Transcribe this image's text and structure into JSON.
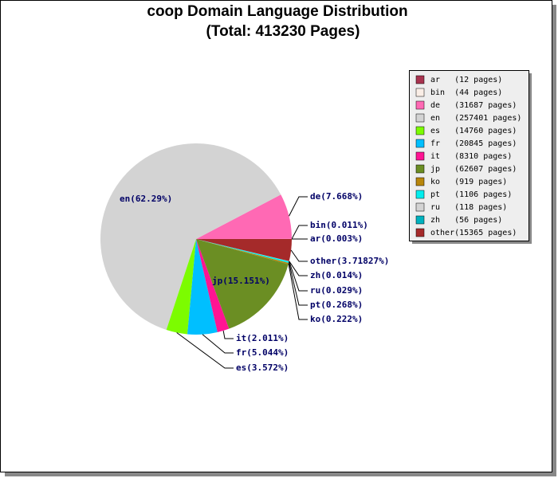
{
  "chart_data": {
    "type": "pie",
    "title": "coop Domain Language Distribution",
    "subtitle": "(Total: 413230 Pages)",
    "categories": [
      "ar",
      "bin",
      "de",
      "en",
      "es",
      "fr",
      "it",
      "jp",
      "ko",
      "pt",
      "ru",
      "zh",
      "other"
    ],
    "values": [
      12,
      44,
      31687,
      257401,
      14760,
      20845,
      8310,
      62607,
      919,
      1106,
      118,
      56,
      15365
    ],
    "colors": [
      "#a8334f",
      "#faeee6",
      "#ff69b4",
      "#d3d3d3",
      "#7cfc00",
      "#00bfff",
      "#ff1493",
      "#6b8e23",
      "#b8860b",
      "#00eeee",
      "#d3d3d3",
      "#00b2bf",
      "#a52a2a"
    ],
    "slice_labels": [
      "ar(0.003%)",
      "bin(0.011%)",
      "de(7.668%)",
      "en(62.29%)",
      "es(3.572%)",
      "fr(5.044%)",
      "it(2.011%)",
      "jp(15.151%)",
      "ko(0.222%)",
      "pt(0.268%)",
      "ru(0.029%)",
      "zh(0.014%)",
      "other(3.71827%)"
    ],
    "legend_labels": [
      "ar   (12 pages)",
      "bin  (44 pages)",
      "de   (31687 pages)",
      "en   (257401 pages)",
      "es   (14760 pages)",
      "fr   (20845 pages)",
      "it   (8310 pages)",
      "jp   (62607 pages)",
      "ko   (919 pages)",
      "pt   (1106 pages)",
      "ru   (118 pages)",
      "zh   (56 pages)",
      "other(15365 pages)"
    ],
    "legend": "upper right"
  }
}
